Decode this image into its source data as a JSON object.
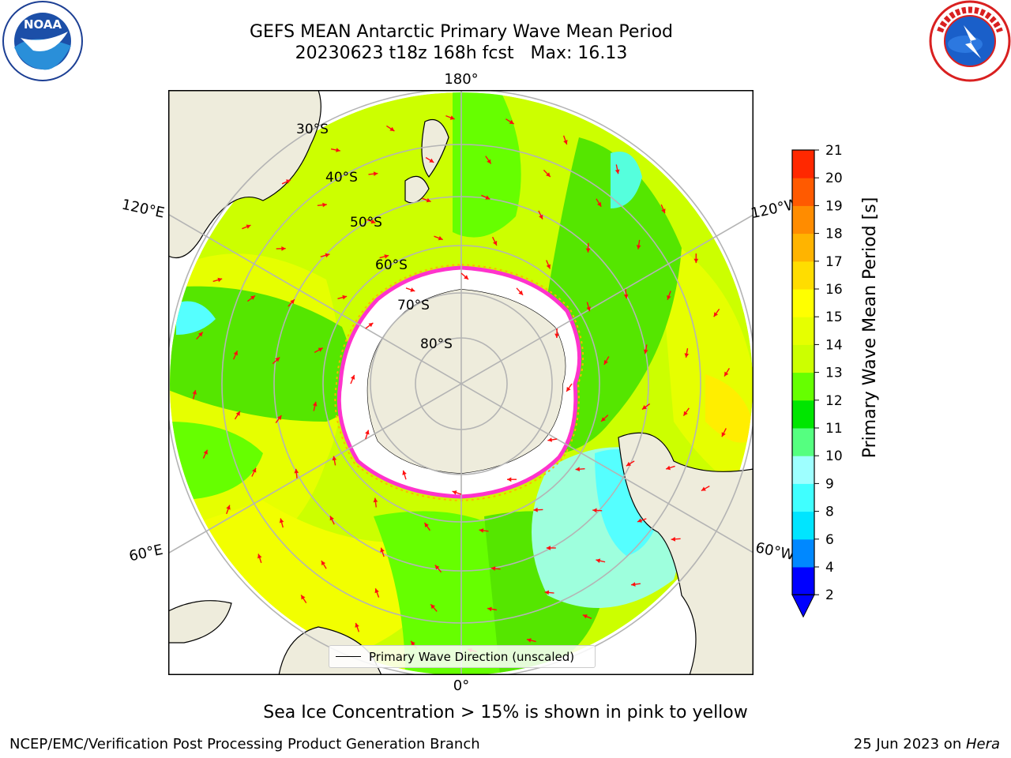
{
  "header": {
    "title_line1": "GEFS MEAN Antarctic Primary Wave Mean Period",
    "title_line2": "20230623 t18z 168h fcst   Max: 16.13"
  },
  "logos": {
    "left": {
      "icon": "noaa-logo",
      "text": "NOAA"
    },
    "right": {
      "icon": "national-weather-service-logo",
      "text": "NATIONAL WEATHER SERVICE"
    }
  },
  "map": {
    "projection": "south-polar-stereographic",
    "longitude_labels": {
      "top": "180°",
      "bottom": "0°",
      "upper_left": "120°E",
      "upper_right": "120°W",
      "lower_left": "60°E",
      "lower_right": "60°W"
    },
    "latitude_labels": [
      "30°S",
      "40°S",
      "50°S",
      "60°S",
      "70°S",
      "80°S"
    ],
    "colors": {
      "land": "#eeecdc",
      "sea_ice": "#ffffff",
      "ice_edge": "#ff33cc",
      "arrow": "#ff1010",
      "grid": "#b4b4b4"
    },
    "legend_text": "Primary Wave Direction (unscaled)"
  },
  "colorbar": {
    "label": "Primary Wave Mean Period [s]",
    "ticks": [
      "2",
      "4",
      "6",
      "8",
      "9",
      "10",
      "11",
      "12",
      "13",
      "14",
      "15",
      "16",
      "17",
      "18",
      "19",
      "20",
      "21"
    ],
    "colors": [
      "#0000ff",
      "#0088ff",
      "#00e5ff",
      "#40ffff",
      "#9effff",
      "#55ff80",
      "#00e600",
      "#66ff00",
      "#ccff00",
      "#e6ff00",
      "#ffff00",
      "#ffdd00",
      "#ffb400",
      "#ff8c00",
      "#ff5a00",
      "#ff2800"
    ],
    "extend": "min"
  },
  "subtitle": "Sea Ice Concentration > 15% is shown in pink to yellow",
  "footer": {
    "left": "NCEP/EMC/Verification Post Processing Product Generation Branch",
    "right_date": "25 Jun 2023 on ",
    "right_host": "Hera"
  }
}
